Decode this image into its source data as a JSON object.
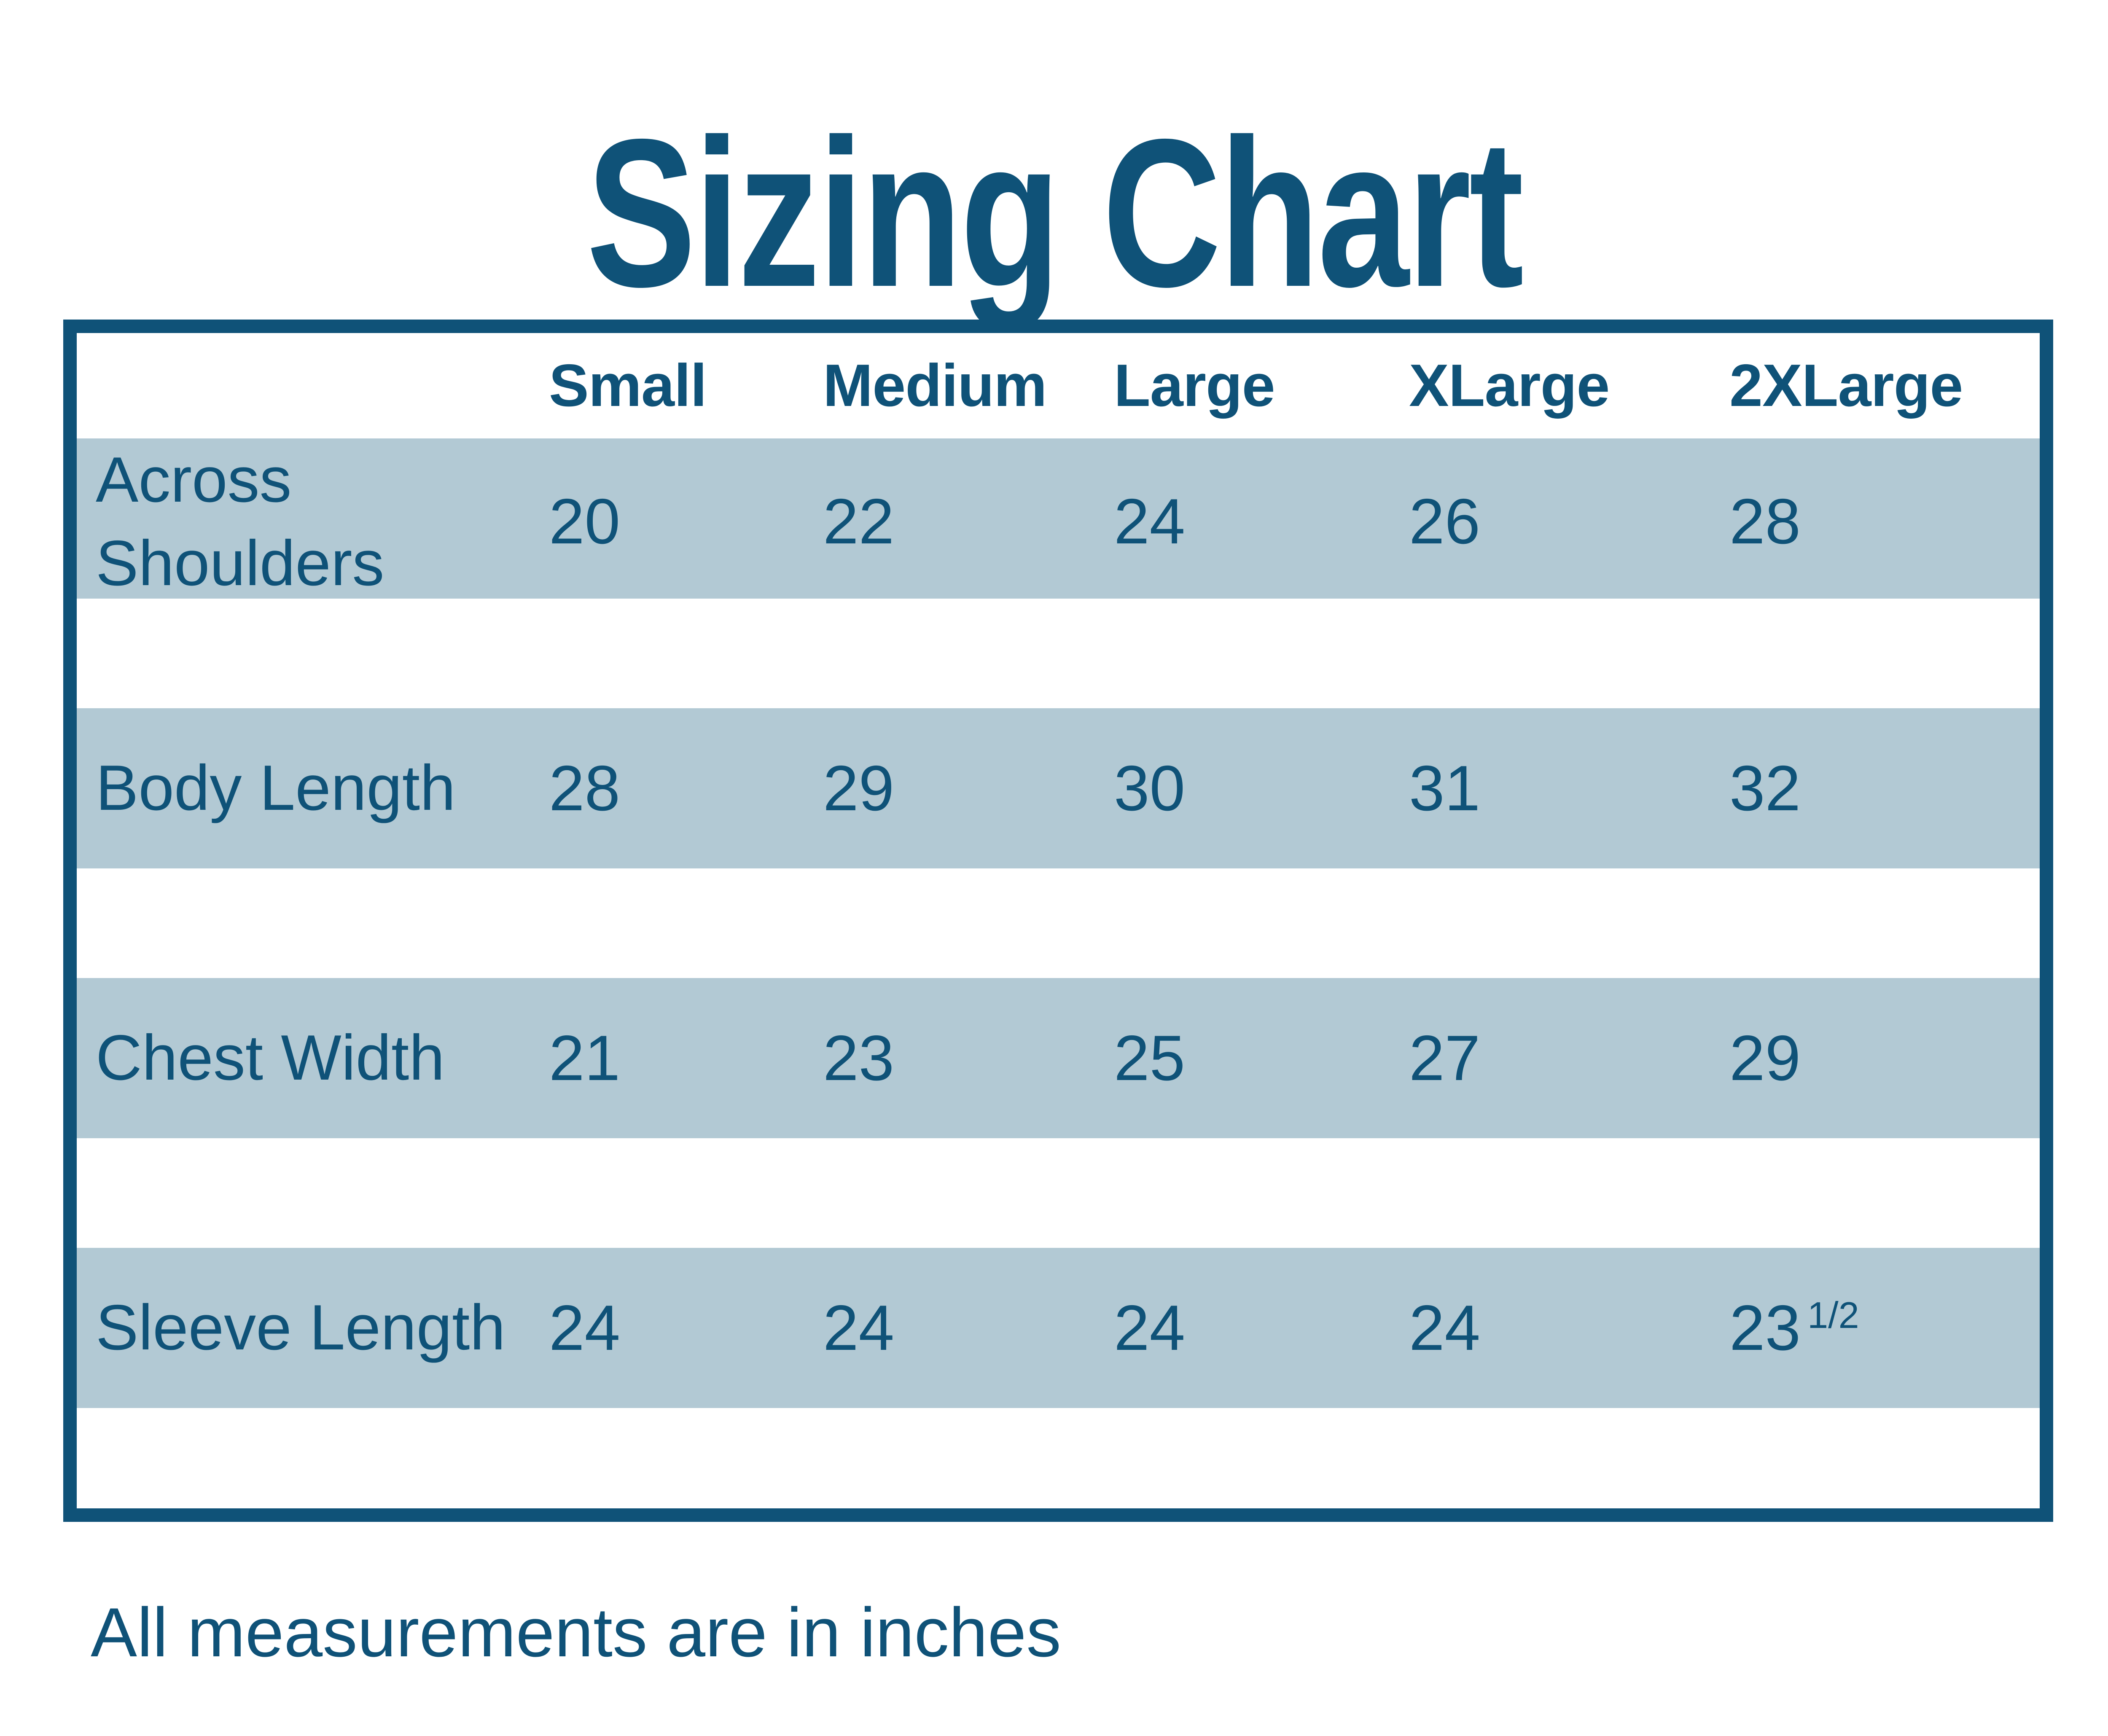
{
  "title": "Sizing Chart",
  "footnote": "All measurements are in inches",
  "colors": {
    "accent": "#0f5278",
    "band": "#b2c9d4",
    "background": "#ffffff"
  },
  "table": {
    "columns": [
      "Small",
      "Medium",
      "Large",
      "XLarge",
      "2XLarge"
    ],
    "rows": [
      {
        "label": "Across Shoulders",
        "values": [
          "20",
          "22",
          "24",
          "26",
          "28"
        ]
      },
      {
        "label": "Body Length",
        "values": [
          "28",
          "29",
          "30",
          "31",
          "32"
        ]
      },
      {
        "label": "Chest Width",
        "values": [
          "21",
          "23",
          "25",
          "27",
          "29"
        ]
      },
      {
        "label": "Sleeve Length",
        "values": [
          "24",
          "24",
          "24",
          "24",
          [
            "23",
            "1/2"
          ]
        ]
      }
    ]
  },
  "chart_data": {
    "type": "table",
    "title": "Sizing Chart",
    "columns": [
      "Small",
      "Medium",
      "Large",
      "XLarge",
      "2XLarge"
    ],
    "rows": [
      {
        "label": "Across Shoulders",
        "values": [
          20,
          22,
          24,
          26,
          28
        ]
      },
      {
        "label": "Body Length",
        "values": [
          28,
          29,
          30,
          31,
          32
        ]
      },
      {
        "label": "Chest Width",
        "values": [
          21,
          23,
          25,
          27,
          29
        ]
      },
      {
        "label": "Sleeve Length",
        "values": [
          24,
          24,
          24,
          24,
          23.5
        ]
      }
    ],
    "note": "All measurements are in inches"
  }
}
